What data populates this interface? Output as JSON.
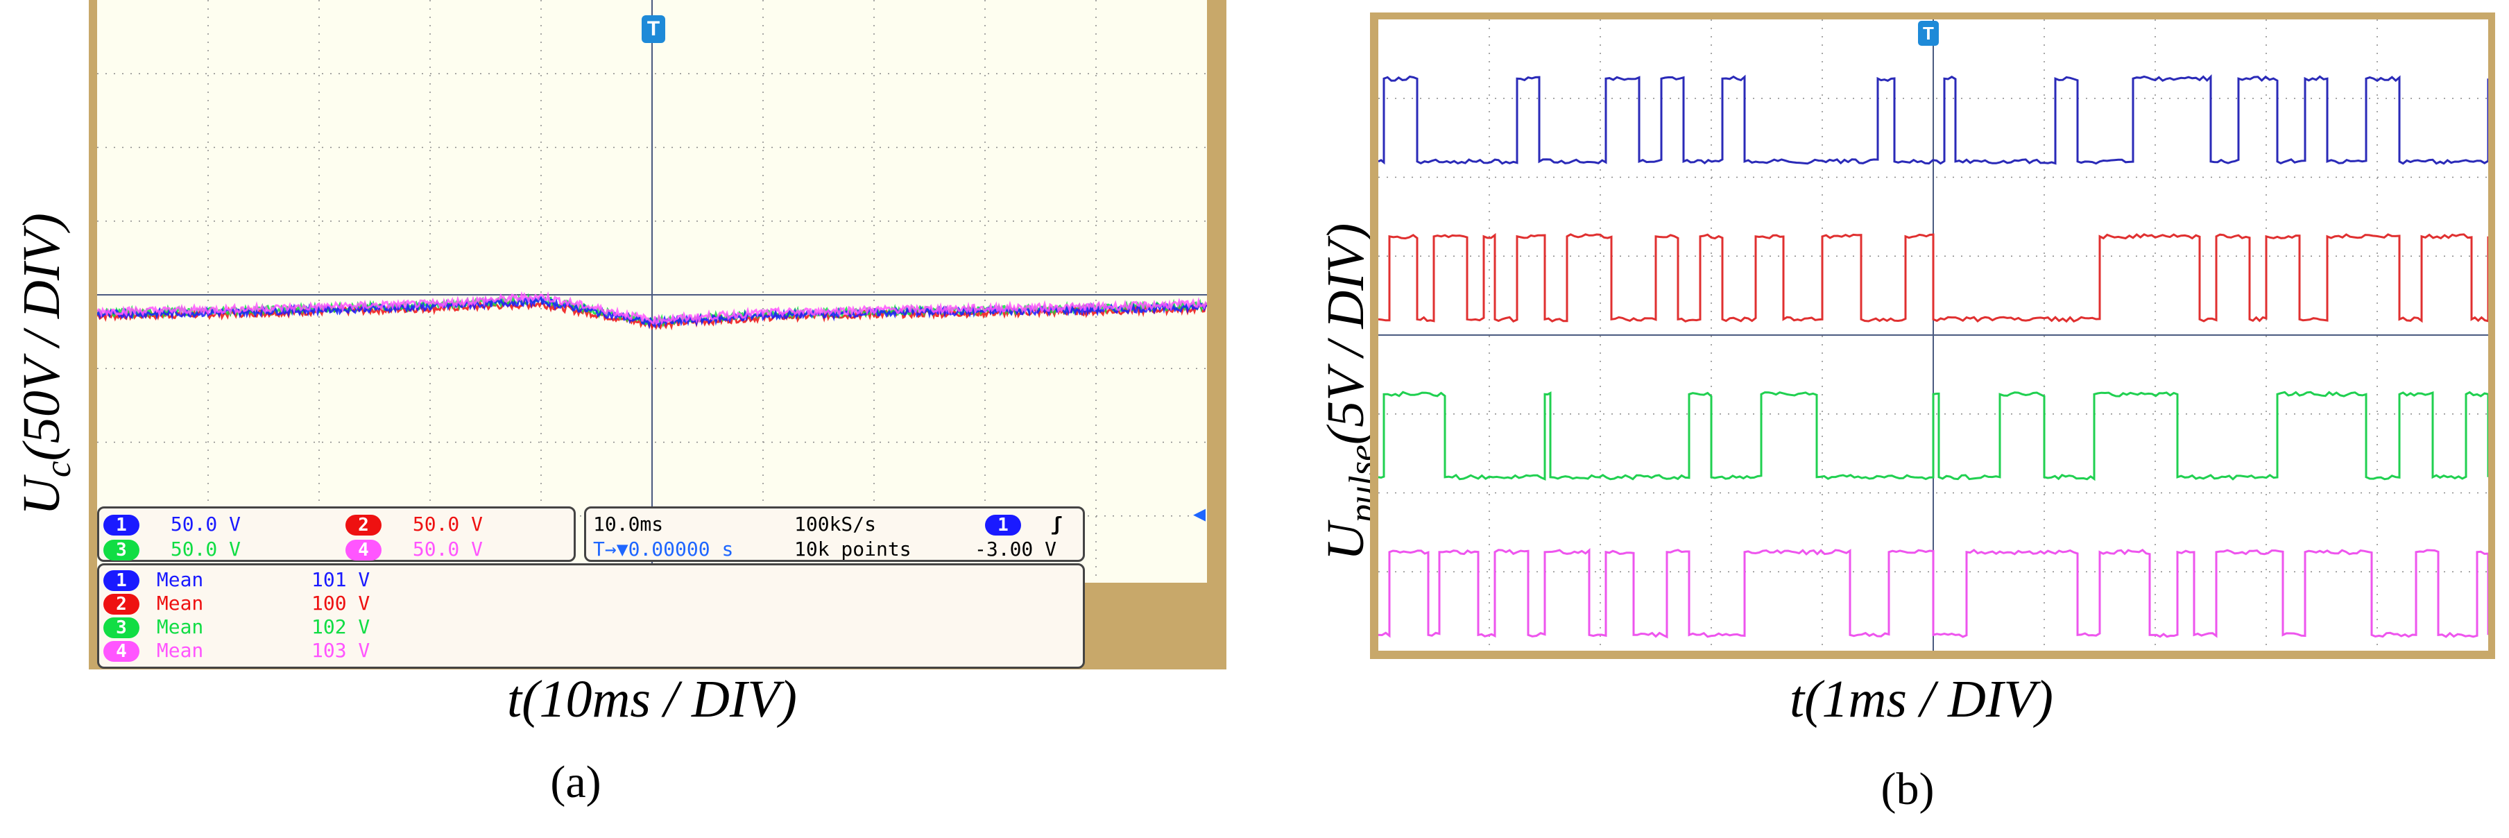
{
  "panel_a": {
    "label": "(a)",
    "ylabel": "U_c(50V / DIV)",
    "xlabel": "t(10ms / DIV)",
    "trigger_marker": "T",
    "scope_settings": {
      "channels": [
        {
          "num": "1",
          "scale": "50.0 V",
          "color": "#1a1aff"
        },
        {
          "num": "2",
          "scale": "50.0 V",
          "color": "#ee1111"
        },
        {
          "num": "3",
          "scale": "50.0 V",
          "color": "#11dd44"
        },
        {
          "num": "4",
          "scale": "50.0 V",
          "color": "#ff55ff"
        }
      ],
      "timebase": "10.0ms",
      "sample_rate": "100kS/s",
      "trigger_channel": "1",
      "trigger_slope": "ʃ",
      "delay_icon": "T→▼",
      "delay": "0.00000 s",
      "points": "10k points",
      "trigger_level": "-3.00 V"
    },
    "measurements": [
      {
        "num": "1",
        "label": "Mean",
        "value": "101 V",
        "color": "#1a1aff"
      },
      {
        "num": "2",
        "label": "Mean",
        "value": "100 V",
        "color": "#ee1111"
      },
      {
        "num": "3",
        "label": "Mean",
        "value": "102 V",
        "color": "#11dd44"
      },
      {
        "num": "4",
        "label": "Mean",
        "value": "103 V",
        "color": "#ff55ff"
      }
    ]
  },
  "panel_b": {
    "label": "(b)",
    "ylabel": "U_pulse(5V / DIV)",
    "xlabel": "t(1ms / DIV)",
    "trigger_marker": "T"
  },
  "chart_data": [
    {
      "type": "line",
      "title": "",
      "xlabel": "t(10ms / DIV)",
      "ylabel": "U_c(50V / DIV)",
      "x_divisions": 10,
      "y_divisions": 8,
      "grid": true,
      "series": [
        {
          "name": "1",
          "color": "#1a1aff",
          "mean": "101 V",
          "x": [
            0,
            1,
            2,
            3,
            4,
            5,
            6,
            7,
            8,
            9,
            10
          ],
          "y": [
            101,
            102,
            104,
            106,
            110,
            95,
            100,
            102,
            103,
            104,
            106
          ]
        },
        {
          "name": "2",
          "color": "#ee1111",
          "mean": "100 V",
          "x": [
            0,
            1,
            2,
            3,
            4,
            5,
            6,
            7,
            8,
            9,
            10
          ],
          "y": [
            100,
            101,
            103,
            105,
            108,
            94,
            99,
            101,
            102,
            103,
            105
          ]
        },
        {
          "name": "3",
          "color": "#11dd44",
          "mean": "102 V",
          "x": [
            0,
            1,
            2,
            3,
            4,
            5,
            6,
            7,
            8,
            9,
            10
          ],
          "y": [
            102,
            103,
            105,
            107,
            111,
            96,
            101,
            103,
            104,
            105,
            107
          ]
        },
        {
          "name": "4",
          "color": "#ff55ff",
          "mean": "103 V",
          "x": [
            0,
            1,
            2,
            3,
            4,
            5,
            6,
            7,
            8,
            9,
            10
          ],
          "y": [
            103,
            104,
            106,
            108,
            113,
            97,
            102,
            104,
            105,
            106,
            108
          ]
        }
      ]
    },
    {
      "type": "line",
      "title": "",
      "xlabel": "t(1ms / DIV)",
      "ylabel": "U_pulse(5V / DIV)",
      "x_divisions": 10,
      "y_divisions": 8,
      "grid": true,
      "series": [
        {
          "name": "1",
          "color": "#2a2ab8",
          "edges": [
            0.05,
            0.35,
            1.25,
            1.45,
            2.05,
            2.35,
            2.55,
            2.75,
            3.1,
            3.3,
            4.5,
            4.65,
            5.1,
            5.2,
            6.1,
            6.3,
            6.8,
            7.5,
            7.75,
            8.1,
            8.35,
            8.55,
            8.9,
            9.2,
            10
          ]
        },
        {
          "name": "2",
          "color": "#e03030",
          "edges": [
            0.1,
            0.35,
            0.5,
            0.8,
            0.95,
            1.05,
            1.25,
            1.5,
            1.7,
            2.1,
            2.5,
            2.7,
            2.9,
            3.1,
            3.4,
            3.65,
            4.0,
            4.35,
            4.75,
            5.0,
            6.5,
            7.4,
            7.55,
            7.85,
            8.0,
            8.3,
            8.55,
            9.2,
            9.4,
            9.85,
            10
          ]
        },
        {
          "name": "3",
          "color": "#20d050",
          "edges": [
            0.05,
            0.6,
            1.5,
            1.55,
            2.8,
            3.0,
            3.45,
            3.95,
            5.0,
            5.05,
            5.6,
            6.0,
            6.45,
            7.2,
            8.1,
            8.9,
            9.2,
            9.5,
            9.8,
            10
          ]
        },
        {
          "name": "4",
          "color": "#ee55ee",
          "edges": [
            0.1,
            0.45,
            0.55,
            0.9,
            1.05,
            1.35,
            1.5,
            1.9,
            2.05,
            2.3,
            2.6,
            2.8,
            3.3,
            4.25,
            4.6,
            5.0,
            5.3,
            6.3,
            6.5,
            6.95,
            7.2,
            7.35,
            7.55,
            8.15,
            8.35,
            8.95,
            9.35,
            9.55,
            9.9,
            10
          ]
        }
      ]
    }
  ]
}
